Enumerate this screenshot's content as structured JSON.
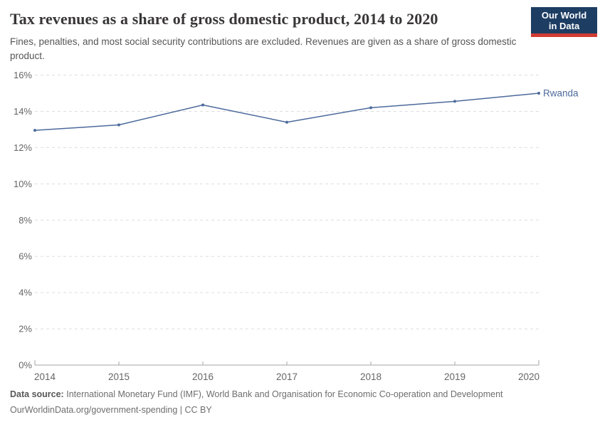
{
  "header": {
    "title": "Tax revenues as a share of gross domestic product, 2014 to 2020",
    "subtitle": "Fines, penalties, and most social security contributions are excluded. Revenues are given as a share of gross domestic product.",
    "logo": {
      "line1": "Our World",
      "line2": "in Data"
    }
  },
  "chart_data": {
    "type": "line",
    "title": "Tax revenues as a share of gross domestic product, 2014 to 2020",
    "x": [
      2014,
      2015,
      2016,
      2017,
      2018,
      2019,
      2020
    ],
    "series": [
      {
        "name": "Rwanda",
        "color": "#4C6A9C",
        "values": [
          12.95,
          13.25,
          14.35,
          13.4,
          14.2,
          14.55,
          15.0
        ]
      }
    ],
    "xlabel": "",
    "ylabel": "",
    "ylim": [
      0,
      16
    ],
    "ytick_step": 2,
    "ytick_suffix": "%",
    "grid": "horizontal-dashed",
    "legend_position": "line-end-label"
  },
  "footer": {
    "source_label": "Data source:",
    "source_text": "International Monetary Fund (IMF), World Bank and Organisation for Economic Co-operation and Development",
    "note": "OurWorldinData.org/government-spending | CC BY"
  },
  "colors": {
    "line": "#4C6A9C",
    "grid": "#dddddd",
    "axis": "#a5a5a5",
    "tick_label": "#666666",
    "title": "#383636",
    "subtitle": "#555555",
    "logo_bg": "#1d3d63",
    "logo_accent": "#d13b32"
  }
}
